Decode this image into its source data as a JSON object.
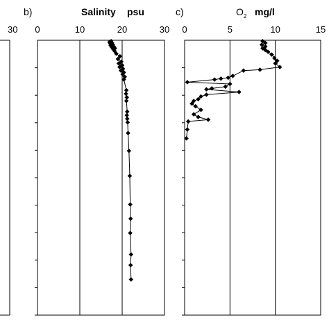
{
  "chart_data": [
    {
      "panel_label": "",
      "type": "line",
      "title": "",
      "xlim": [
        0,
        30
      ],
      "x_tick_labels": [
        "30"
      ],
      "series": [],
      "grid": true
    },
    {
      "panel_label": "b)",
      "type": "line",
      "title": "Salinity",
      "xlabel_unit": "psu",
      "xlim": [
        0,
        30
      ],
      "x_tick_labels": [
        "0",
        "10",
        "20",
        "30"
      ],
      "y_axis": "depth, increasing downward, no tick labels printed",
      "grid": true,
      "series": [
        {
          "points": [
            {
              "x": 17.4,
              "y": 0.5
            },
            {
              "x": 17.0,
              "y": 1.0
            },
            {
              "x": 17.6,
              "y": 1.5
            },
            {
              "x": 17.2,
              "y": 2.0
            },
            {
              "x": 17.8,
              "y": 2.5
            },
            {
              "x": 17.3,
              "y": 3.0
            },
            {
              "x": 18.0,
              "y": 3.5
            },
            {
              "x": 17.6,
              "y": 4.0
            },
            {
              "x": 18.3,
              "y": 4.5
            },
            {
              "x": 17.9,
              "y": 5.0
            },
            {
              "x": 18.2,
              "y": 6.0
            },
            {
              "x": 18.6,
              "y": 7.5
            },
            {
              "x": 19.5,
              "y": 9.0
            },
            {
              "x": 19.0,
              "y": 10.5
            },
            {
              "x": 19.8,
              "y": 12.0
            },
            {
              "x": 19.2,
              "y": 13.0
            },
            {
              "x": 20.0,
              "y": 14.0
            },
            {
              "x": 19.4,
              "y": 15.0
            },
            {
              "x": 20.2,
              "y": 16.0
            },
            {
              "x": 19.7,
              "y": 17.0
            },
            {
              "x": 20.4,
              "y": 18.0
            },
            {
              "x": 20.1,
              "y": 19.0
            },
            {
              "x": 20.6,
              "y": 20.5
            },
            {
              "x": 20.4,
              "y": 22.0
            },
            {
              "x": 21.0,
              "y": 28.0
            },
            {
              "x": 20.9,
              "y": 30.0
            },
            {
              "x": 21.1,
              "y": 32.0
            },
            {
              "x": 21.0,
              "y": 34.0
            },
            {
              "x": 21.2,
              "y": 40.0
            },
            {
              "x": 21.1,
              "y": 42.0
            },
            {
              "x": 21.2,
              "y": 44.0
            },
            {
              "x": 21.3,
              "y": 46.0
            },
            {
              "x": 21.4,
              "y": 52.0
            },
            {
              "x": 21.6,
              "y": 62.0
            },
            {
              "x": 21.8,
              "y": 76.0
            },
            {
              "x": 21.9,
              "y": 92.0
            },
            {
              "x": 22.0,
              "y": 100.0
            },
            {
              "x": 21.9,
              "y": 108.0
            },
            {
              "x": 22.1,
              "y": 120.0
            },
            {
              "x": 22.0,
              "y": 126.0
            },
            {
              "x": 22.1,
              "y": 134.0
            }
          ]
        }
      ]
    },
    {
      "panel_label": "c)",
      "type": "line",
      "title": "O",
      "title_subscript": "2",
      "xlabel_unit": "mg/l",
      "xlim": [
        0,
        15
      ],
      "x_tick_labels": [
        "0",
        "5",
        "10",
        "15"
      ],
      "y_axis": "depth, increasing downward, no tick labels printed",
      "grid": true,
      "series": [
        {
          "points": [
            {
              "x": 8.6,
              "y": 0.5
            },
            {
              "x": 8.9,
              "y": 1.5
            },
            {
              "x": 8.5,
              "y": 2.5
            },
            {
              "x": 8.9,
              "y": 3.5
            },
            {
              "x": 8.6,
              "y": 4.5
            },
            {
              "x": 8.9,
              "y": 5.5
            },
            {
              "x": 9.2,
              "y": 6.5
            },
            {
              "x": 9.6,
              "y": 8.0
            },
            {
              "x": 9.9,
              "y": 10.0
            },
            {
              "x": 10.2,
              "y": 11.5
            },
            {
              "x": 10.0,
              "y": 13.0
            },
            {
              "x": 10.5,
              "y": 15.0
            },
            {
              "x": 8.3,
              "y": 16.5
            },
            {
              "x": 6.5,
              "y": 17.0
            },
            {
              "x": 5.3,
              "y": 20.0
            },
            {
              "x": 4.8,
              "y": 21.0
            },
            {
              "x": 4.0,
              "y": 21.5
            },
            {
              "x": 3.3,
              "y": 22.0
            },
            {
              "x": 0.3,
              "y": 23.5
            },
            {
              "x": 5.0,
              "y": 24.5
            },
            {
              "x": 4.5,
              "y": 26.0
            },
            {
              "x": 3.0,
              "y": 27.0
            },
            {
              "x": 2.4,
              "y": 27.5
            },
            {
              "x": 6.0,
              "y": 29.0
            },
            {
              "x": 2.4,
              "y": 30.5
            },
            {
              "x": 1.8,
              "y": 31.5
            },
            {
              "x": 1.5,
              "y": 33.0
            },
            {
              "x": 1.0,
              "y": 34.0
            },
            {
              "x": 0.8,
              "y": 35.5
            },
            {
              "x": 1.2,
              "y": 37.0
            },
            {
              "x": 1.8,
              "y": 39.0
            },
            {
              "x": 1.0,
              "y": 41.5
            },
            {
              "x": 1.5,
              "y": 43.0
            },
            {
              "x": 2.6,
              "y": 44.5
            },
            {
              "x": 0.4,
              "y": 45.5
            },
            {
              "x": 0.3,
              "y": 50.0
            },
            {
              "x": 0.2,
              "y": 55.0
            }
          ]
        }
      ]
    }
  ]
}
